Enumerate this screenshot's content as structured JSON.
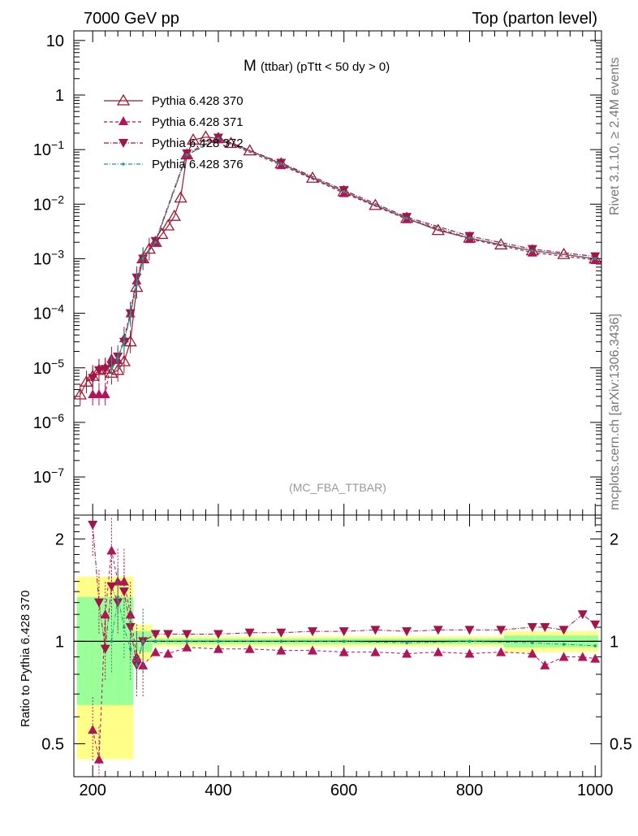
{
  "header": {
    "left": "7000 GeV pp",
    "right": "Top (parton level)"
  },
  "plot_title": "M",
  "plot_subtitle": "(ttbar)  (pTtt < 50 dy > 0)",
  "watermark": "(MC_FBA_TTBAR)",
  "side_text_top": "Rivet 3.1.10, ≥ 2.4M events",
  "side_text_bottom": "mcplots.cern.ch [arXiv:1306.3436]",
  "ratio_ylabel": "Ratio to Pythia 6.428 370",
  "colors": {
    "s370": "#a0182e",
    "s371": "#b0155a",
    "s372": "#a31448",
    "s376": "#1a9a8a",
    "band_green": "#99ff99",
    "band_yellow": "#ffff88"
  },
  "chart_data": [
    {
      "type": "line",
      "panel": "main",
      "title": "M (ttbar) (pTtt < 50 dy > 0)",
      "xlabel": "",
      "ylabel": "",
      "xlim": [
        170,
        1010
      ],
      "ylim": [
        2e-08,
        15
      ],
      "yscale": "log",
      "xticks": [
        200,
        400,
        600,
        800,
        1000
      ],
      "yticks": [
        "10",
        "1",
        "10^-1",
        "10^-2",
        "10^-3",
        "10^-4",
        "10^-5",
        "10^-6",
        "10^-7"
      ],
      "legend_position": "top-left",
      "series": [
        {
          "name": "Pythia 6.428 370",
          "marker": "open-triangle-up",
          "x": [
            180,
            190,
            200,
            210,
            220,
            230,
            240,
            250,
            260,
            270,
            280,
            290,
            300,
            310,
            320,
            330,
            340,
            350,
            360,
            380,
            400,
            420,
            450,
            500,
            550,
            600,
            650,
            700,
            750,
            800,
            850,
            900,
            950,
            1000
          ],
          "y": [
            3.2e-06,
            5.5e-06,
            7e-06,
            9e-06,
            9.5e-06,
            8e-06,
            9e-06,
            1.3e-05,
            3e-05,
            0.0003,
            0.001,
            0.0015,
            0.002,
            0.0028,
            0.004,
            0.006,
            0.013,
            0.08,
            0.15,
            0.17,
            0.16,
            0.13,
            0.095,
            0.055,
            0.03,
            0.017,
            0.0095,
            0.0055,
            0.0033,
            0.0024,
            0.0018,
            0.0014,
            0.0012,
            0.001
          ]
        },
        {
          "name": "Pythia 6.428 371",
          "marker": "filled-triangle-up",
          "x": [
            200,
            210,
            220,
            230,
            240,
            250,
            260,
            270,
            280,
            300,
            350,
            400,
            500,
            600,
            700,
            800,
            900,
            1000
          ],
          "y": [
            3.3e-06,
            3.3e-06,
            3.3e-06,
            1.5e-05,
            1.4e-05,
            3.5e-05,
            0.0001,
            0.0004,
            0.001,
            0.002,
            0.08,
            0.155,
            0.052,
            0.016,
            0.0053,
            0.0023,
            0.0013,
            0.00095
          ]
        },
        {
          "name": "Pythia 6.428 372",
          "marker": "filled-triangle-down",
          "x": [
            200,
            210,
            220,
            230,
            240,
            250,
            260,
            270,
            280,
            300,
            350,
            400,
            500,
            600,
            700,
            800,
            900,
            1000
          ],
          "y": [
            6.5e-06,
            9e-06,
            9.5e-06,
            1.1e-05,
            1.6e-05,
            3e-05,
            0.0001,
            0.00045,
            0.001,
            0.0021,
            0.085,
            0.165,
            0.057,
            0.018,
            0.0058,
            0.0026,
            0.0015,
            0.0011
          ]
        },
        {
          "name": "Pythia 6.428 376",
          "marker": "dot",
          "x": [
            230,
            240,
            250,
            260,
            270,
            280,
            300,
            350,
            400,
            500,
            600,
            700,
            800,
            900,
            1000
          ],
          "y": [
            1e-05,
            1.5e-05,
            3e-05,
            9e-05,
            0.00035,
            0.001,
            0.002,
            0.08,
            0.16,
            0.055,
            0.017,
            0.0055,
            0.0024,
            0.0014,
            0.001
          ]
        }
      ]
    },
    {
      "type": "line",
      "panel": "ratio",
      "ylabel": "Ratio to Pythia 6.428 370",
      "xlim": [
        170,
        1010
      ],
      "ylim": [
        0.4,
        2.35
      ],
      "yscale": "log",
      "xticks": [
        200,
        400,
        600,
        800,
        1000
      ],
      "yticks": [
        0.5,
        1,
        2
      ],
      "series": [
        {
          "name": "Pythia 6.428 371",
          "x": [
            200,
            210,
            220,
            230,
            240,
            250,
            260,
            270,
            280,
            300,
            320,
            350,
            400,
            450,
            500,
            550,
            600,
            650,
            700,
            750,
            800,
            850,
            900,
            920,
            950,
            980,
            1000
          ],
          "y": [
            0.55,
            0.45,
            1.2,
            1.85,
            1.5,
            1.5,
            1.2,
            0.9,
            0.85,
            0.93,
            0.92,
            0.96,
            0.95,
            0.95,
            0.94,
            0.94,
            0.93,
            0.93,
            0.92,
            0.93,
            0.92,
            0.93,
            0.92,
            0.85,
            0.9,
            0.9,
            0.89
          ]
        },
        {
          "name": "Pythia 6.428 372",
          "x": [
            200,
            210,
            220,
            230,
            240,
            250,
            260,
            270,
            280,
            300,
            320,
            350,
            400,
            450,
            500,
            550,
            600,
            650,
            700,
            750,
            800,
            850,
            900,
            920,
            950,
            980,
            1000
          ],
          "y": [
            2.2,
            1.3,
            0.95,
            1.45,
            1.3,
            1.4,
            1.1,
            0.85,
            1.0,
            1.05,
            1.05,
            1.05,
            1.05,
            1.06,
            1.06,
            1.07,
            1.07,
            1.08,
            1.07,
            1.08,
            1.08,
            1.08,
            1.1,
            1.1,
            1.08,
            1.2,
            1.12
          ]
        },
        {
          "name": "Pythia 6.428 376",
          "x": [
            230,
            240,
            250,
            260,
            270,
            280,
            300,
            350,
            400,
            500,
            600,
            700,
            800,
            900,
            950,
            1000
          ],
          "y": [
            1.0,
            1.35,
            1.1,
            0.95,
            0.85,
            1.0,
            1.0,
            1.0,
            1.0,
            1.0,
            1.0,
            0.99,
            1.0,
            0.99,
            0.98,
            0.97
          ]
        }
      ]
    }
  ]
}
